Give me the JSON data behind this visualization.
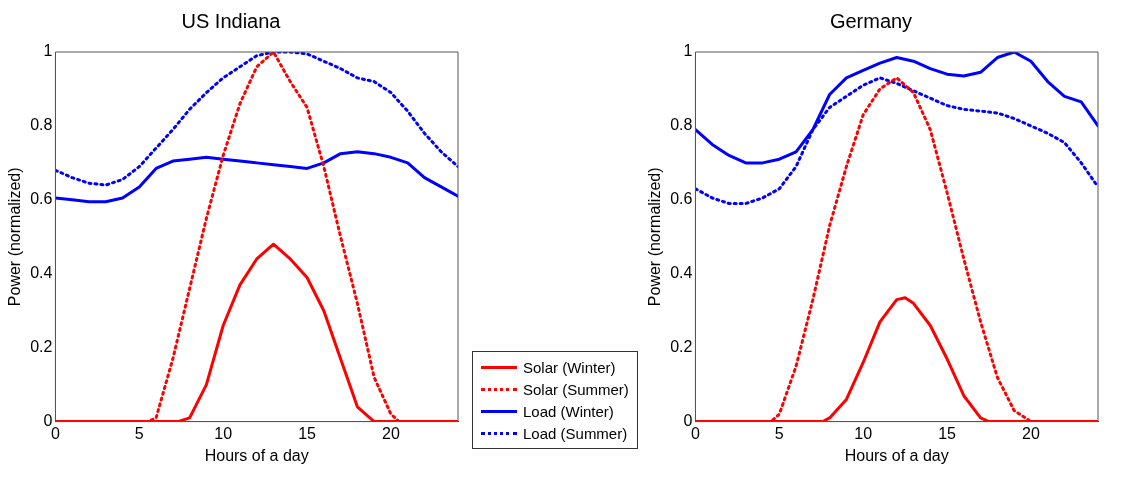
{
  "chart_data": [
    {
      "type": "line",
      "title": "US Indiana",
      "xlabel": "Hours of a day",
      "ylabel": "Power (normalized)",
      "xlim": [
        0,
        24
      ],
      "xticks": [
        0,
        5,
        10,
        15,
        20
      ],
      "ylim": [
        0,
        1
      ],
      "yticks": [
        0,
        0.2,
        0.4,
        0.6,
        0.8,
        1
      ],
      "grid": false,
      "legend": "right",
      "marker": "none",
      "series": [
        {
          "name": "Solar (Winter)",
          "color": "#ff0000",
          "line_style": "solid",
          "x": [
            0,
            7.3,
            8,
            9,
            10,
            11,
            12,
            13,
            14,
            15,
            16,
            17,
            18,
            19,
            24
          ],
          "values": [
            0,
            0,
            0.01,
            0.1,
            0.26,
            0.37,
            0.44,
            0.48,
            0.44,
            0.39,
            0.3,
            0.17,
            0.04,
            0,
            0
          ]
        },
        {
          "name": "Solar (Summer)",
          "color": "#ff0000",
          "line_style": "dotted",
          "x": [
            0,
            5.5,
            6,
            7,
            8,
            9,
            10,
            11,
            12,
            13,
            14,
            15,
            16,
            17,
            18,
            19,
            20,
            20.5,
            24
          ],
          "values": [
            0,
            0,
            0.01,
            0.17,
            0.36,
            0.55,
            0.72,
            0.86,
            0.96,
            1,
            0.92,
            0.85,
            0.69,
            0.5,
            0.32,
            0.12,
            0.02,
            0,
            0
          ]
        },
        {
          "name": "Load (Winter)",
          "color": "#0000ff",
          "line_style": "solid",
          "x": [
            0,
            1,
            2,
            3,
            4,
            5,
            6,
            7,
            8,
            9,
            10,
            11,
            12,
            13,
            14,
            15,
            16,
            17,
            18,
            19,
            20,
            21,
            22,
            23,
            24
          ],
          "values": [
            0.605,
            0.6,
            0.595,
            0.595,
            0.605,
            0.635,
            0.685,
            0.705,
            0.71,
            0.715,
            0.71,
            0.705,
            0.7,
            0.695,
            0.69,
            0.685,
            0.7,
            0.725,
            0.73,
            0.725,
            0.715,
            0.7,
            0.66,
            0.635,
            0.61
          ]
        },
        {
          "name": "Load (Summer)",
          "color": "#0000ff",
          "line_style": "dotted",
          "x": [
            0,
            1,
            2,
            3,
            4,
            5,
            6,
            7,
            8,
            9,
            10,
            11,
            12,
            13,
            14,
            15,
            16,
            17,
            18,
            19,
            20,
            21,
            22,
            23,
            24
          ],
          "values": [
            0.68,
            0.66,
            0.645,
            0.64,
            0.655,
            0.69,
            0.74,
            0.79,
            0.845,
            0.89,
            0.93,
            0.96,
            0.99,
            1,
            1,
            0.995,
            0.975,
            0.955,
            0.93,
            0.92,
            0.89,
            0.84,
            0.78,
            0.73,
            0.69
          ]
        }
      ]
    },
    {
      "type": "line",
      "title": "Germany",
      "xlabel": "Hours of a day",
      "ylabel": "Power (normalized)",
      "xlim": [
        0,
        24
      ],
      "xticks": [
        0,
        5,
        10,
        15,
        20
      ],
      "ylim": [
        0,
        1
      ],
      "yticks": [
        0,
        0.2,
        0.4,
        0.6,
        0.8,
        1
      ],
      "grid": false,
      "marker": "none",
      "series": [
        {
          "color": "#ff0000",
          "line_style": "solid",
          "x": [
            0,
            7.6,
            8,
            9,
            10,
            11,
            12,
            12.5,
            13,
            14,
            15,
            16,
            17,
            17.5,
            24
          ],
          "values": [
            0,
            0,
            0.01,
            0.06,
            0.16,
            0.27,
            0.33,
            0.335,
            0.32,
            0.26,
            0.17,
            0.07,
            0.01,
            0,
            0
          ]
        },
        {
          "color": "#ff0000",
          "line_style": "dotted",
          "x": [
            0,
            4.5,
            5,
            6,
            7,
            8,
            9,
            10,
            11,
            12,
            13,
            14,
            15,
            16,
            17,
            18,
            19,
            20,
            24
          ],
          "values": [
            0,
            0,
            0.02,
            0.15,
            0.33,
            0.53,
            0.69,
            0.83,
            0.9,
            0.93,
            0.89,
            0.79,
            0.62,
            0.44,
            0.27,
            0.12,
            0.03,
            0,
            0
          ]
        },
        {
          "color": "#0000ff",
          "line_style": "solid",
          "x": [
            0,
            1,
            2,
            3,
            4,
            5,
            6,
            7,
            8,
            9,
            10,
            11,
            12,
            13,
            14,
            15,
            16,
            17,
            18,
            19,
            20,
            21,
            22,
            23,
            24
          ],
          "values": [
            0.79,
            0.75,
            0.72,
            0.7,
            0.7,
            0.71,
            0.73,
            0.79,
            0.885,
            0.93,
            0.95,
            0.97,
            0.985,
            0.975,
            0.955,
            0.94,
            0.935,
            0.945,
            0.985,
            1,
            0.975,
            0.92,
            0.88,
            0.865,
            0.8
          ]
        },
        {
          "color": "#0000ff",
          "line_style": "dotted",
          "x": [
            0,
            1,
            2,
            3,
            4,
            5,
            6,
            7,
            8,
            9,
            10,
            11,
            12,
            13,
            14,
            15,
            16,
            17,
            18,
            19,
            20,
            21,
            22,
            23,
            24
          ],
          "values": [
            0.63,
            0.605,
            0.59,
            0.59,
            0.605,
            0.63,
            0.69,
            0.79,
            0.85,
            0.88,
            0.91,
            0.93,
            0.915,
            0.895,
            0.875,
            0.855,
            0.845,
            0.84,
            0.835,
            0.82,
            0.8,
            0.78,
            0.755,
            0.7,
            0.635
          ]
        }
      ]
    }
  ]
}
